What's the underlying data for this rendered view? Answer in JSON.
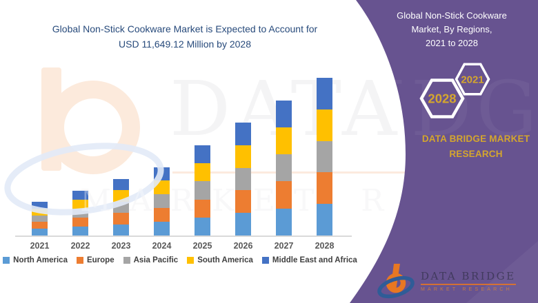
{
  "header": {
    "title": "Global Non-Stick Cookware Market is Expected to Account for\nUSD 11,649.12 Million by 2028"
  },
  "sidebar": {
    "title": "Global Non-Stick Cookware\nMarket, By Regions,\n2021 to 2028",
    "hexagons": [
      {
        "label": "2028"
      },
      {
        "label": "2021"
      }
    ],
    "brand_text": "DATA BRIDGE MARKET\nRESEARCH",
    "logo": {
      "name": "DATA BRIDGE",
      "tagline": "MARKET RESEARCH"
    }
  },
  "watermark": {
    "big_text": "DATA BRI",
    "big_text_right": "IDGE",
    "row2_text": "MARKET RE"
  },
  "colors": {
    "purple": "#675390",
    "gold": "#D4A62E",
    "title_navy": "#274A7B",
    "axis_label": "#595959",
    "legend_text": "#3F3F3F",
    "axis_line": "#D9D9D9"
  },
  "chart_data": {
    "type": "bar",
    "stacked": true,
    "title": "Global Non-Stick Cookware Market is Expected to Account for USD 11,649.12 Million by 2028",
    "unit": "USD Million",
    "categories": [
      "2021",
      "2022",
      "2023",
      "2024",
      "2025",
      "2026",
      "2027",
      "2028"
    ],
    "series": [
      {
        "name": "North America",
        "color": "#5B9BD5",
        "values": [
          500,
          665,
          840,
          1010,
          1335,
          1670,
          2000,
          2329.82
        ]
      },
      {
        "name": "Europe",
        "color": "#ED7D31",
        "values": [
          500,
          665,
          840,
          1010,
          1335,
          1670,
          2000,
          2329.82
        ]
      },
      {
        "name": "Asia Pacific",
        "color": "#A5A5A5",
        "values": [
          500,
          665,
          840,
          1010,
          1335,
          1670,
          2000,
          2329.82
        ]
      },
      {
        "name": "South America",
        "color": "#FFC000",
        "values": [
          500,
          665,
          840,
          1010,
          1335,
          1670,
          2000,
          2329.82
        ]
      },
      {
        "name": "Middle East and Africa",
        "color": "#4472C4",
        "values": [
          500,
          665,
          840,
          1010,
          1335,
          1670,
          2000,
          2329.82
        ]
      }
    ],
    "totals": [
      2500,
      3325,
      4200,
      5050,
      6675,
      8350,
      10000,
      11649.12
    ],
    "xlabel": "",
    "ylabel": "",
    "ylim": [
      0,
      12000
    ],
    "grid": false,
    "y_axis_visible": false,
    "legend_position": "bottom"
  }
}
